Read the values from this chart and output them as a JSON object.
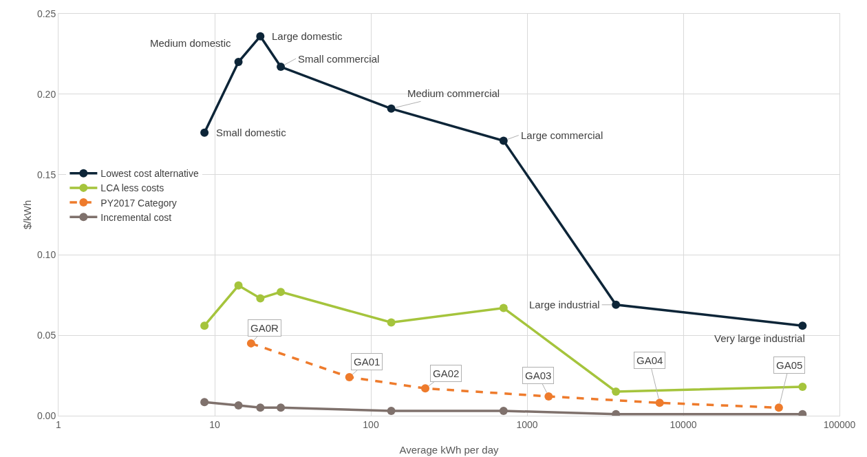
{
  "chart_data": {
    "type": "line",
    "xlabel": "Average kWh per day",
    "ylabel": "$/kWh",
    "log": "x",
    "xlim": [
      1,
      100000
    ],
    "xticks": [
      1,
      10,
      100,
      1000,
      10000,
      100000
    ],
    "ylim": [
      0,
      0.25
    ],
    "yticks": [
      {
        "value": 0,
        "label": "0.00"
      },
      {
        "value": 0.05,
        "label": "0.05"
      },
      {
        "value": 0.1,
        "label": "0.10"
      },
      {
        "value": 0.15,
        "label": "0.15"
      },
      {
        "value": 0.2,
        "label": "0.20"
      },
      {
        "value": 0.25,
        "label": "0.25"
      }
    ],
    "grid": true,
    "legend": "left",
    "marker": "circle",
    "series": [
      {
        "name": "Lowest cost alternative",
        "color": "#0d2538",
        "line_style": "solid",
        "x": [
          8.6,
          14.2,
          19.6,
          26.5,
          135,
          707,
          3706,
          58000
        ],
        "values": [
          0.176,
          0.22,
          0.236,
          0.217,
          0.191,
          0.171,
          0.069,
          0.056
        ]
      },
      {
        "name": "LCA less costs",
        "color": "#a5c43c",
        "line_style": "solid",
        "x": [
          8.6,
          14.2,
          19.6,
          26.5,
          135,
          707,
          3706,
          58000
        ],
        "values": [
          0.056,
          0.081,
          0.073,
          0.077,
          0.058,
          0.067,
          0.015,
          0.018
        ]
      },
      {
        "name": "PY2017 Category",
        "color": "#ee7b2c",
        "line_style": "dashed",
        "x": [
          17.1,
          72.8,
          223,
          1374,
          7060,
          40900
        ],
        "values": [
          0.045,
          0.024,
          0.017,
          0.012,
          0.008,
          0.005
        ]
      },
      {
        "name": "Incremental cost",
        "color": "#7f716c",
        "line_style": "solid",
        "x": [
          8.6,
          14.2,
          19.6,
          26.5,
          135,
          707,
          3706,
          58000
        ],
        "values": [
          0.0085,
          0.0064,
          0.005,
          0.005,
          0.003,
          0.003,
          0.001,
          0.001
        ]
      }
    ],
    "annotations": [
      {
        "text": "Small domestic",
        "x": 8.6,
        "y": 0.176
      },
      {
        "text": "Medium domestic",
        "x": 14.2,
        "y": 0.22
      },
      {
        "text": "Large domestic",
        "x": 19.6,
        "y": 0.236
      },
      {
        "text": "Small commercial",
        "x": 26.5,
        "y": 0.217
      },
      {
        "text": "Medium commercial",
        "x": 135,
        "y": 0.191
      },
      {
        "text": "Large commercial",
        "x": 707,
        "y": 0.171
      },
      {
        "text": "Large industrial",
        "x": 3706,
        "y": 0.069
      },
      {
        "text": "Very large industrial",
        "x": 58000,
        "y": 0.056
      },
      {
        "text": "GA0R",
        "x": 17.1,
        "y": 0.045
      },
      {
        "text": "GA01",
        "x": 72.8,
        "y": 0.024
      },
      {
        "text": "GA02",
        "x": 223,
        "y": 0.017
      },
      {
        "text": "GA03",
        "x": 1374,
        "y": 0.012
      },
      {
        "text": "GA04",
        "x": 7060,
        "y": 0.008
      },
      {
        "text": "GA05",
        "x": 40900,
        "y": 0.005
      }
    ]
  }
}
